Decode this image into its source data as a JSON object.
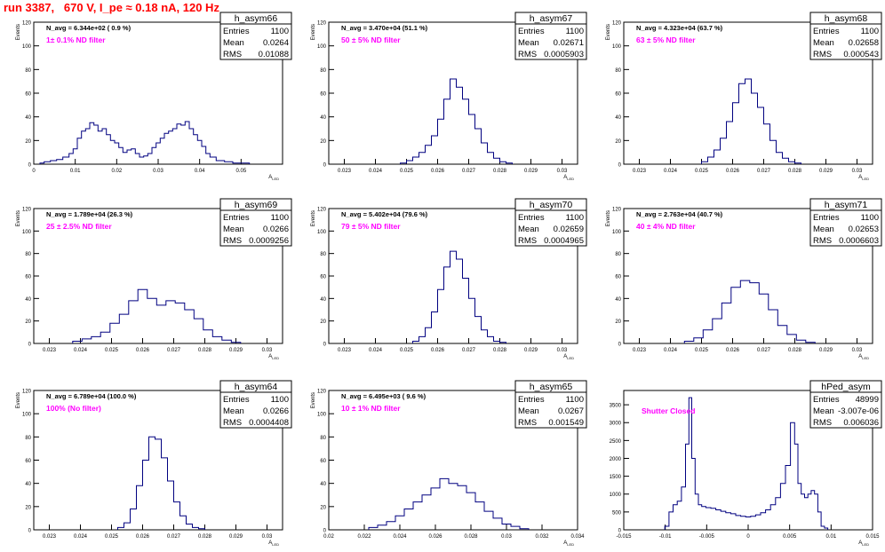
{
  "title": "run 3387,   670 V, I_pe ≈ 0.18 nA, 120 Hz",
  "colors": {
    "title": "#ff0000",
    "line": "#000080",
    "annotation": "#ff00ff",
    "text": "#000000"
  },
  "chart_data": [
    {
      "type": "histogram",
      "name": "h_asym66",
      "navg": "N_avg = 6.344e+02 ( 0.9 %)",
      "filter": "1± 0.1% ND filter",
      "stats": {
        "entries": "1100",
        "mean": "0.0264",
        "rms": "0.01088"
      },
      "xlim": [
        0,
        0.06
      ],
      "ylim": [
        0,
        120
      ],
      "xticks": [
        "0",
        "0.01",
        "0.02",
        "0.03",
        "0.04",
        "0.05"
      ],
      "xtickvals": [
        0,
        0.01,
        0.02,
        0.03,
        0.04,
        0.05
      ],
      "yticks": [
        "0",
        "20",
        "40",
        "60",
        "80",
        "100",
        "120"
      ],
      "xlabel": "A_LED",
      "ylabel": "Events",
      "x": [
        0.002,
        0.003,
        0.005,
        0.006,
        0.008,
        0.009,
        0.01,
        0.011,
        0.012,
        0.013,
        0.014,
        0.015,
        0.016,
        0.017,
        0.018,
        0.019,
        0.02,
        0.021,
        0.022,
        0.023,
        0.024,
        0.025,
        0.026,
        0.027,
        0.028,
        0.029,
        0.03,
        0.031,
        0.032,
        0.033,
        0.034,
        0.035,
        0.036,
        0.037,
        0.038,
        0.039,
        0.04,
        0.041,
        0.042,
        0.043,
        0.045,
        0.047,
        0.049,
        0.051
      ],
      "values": [
        1,
        2,
        3,
        4,
        6,
        9,
        13,
        22,
        28,
        30,
        35,
        33,
        28,
        30,
        25,
        20,
        18,
        14,
        10,
        12,
        13,
        9,
        6,
        7,
        9,
        14,
        18,
        22,
        26,
        28,
        30,
        34,
        33,
        36,
        30,
        25,
        20,
        15,
        9,
        6,
        3,
        2,
        1,
        1
      ]
    },
    {
      "type": "histogram",
      "name": "h_asym67",
      "navg": "N_avg = 3.470e+04 (51.1 %)",
      "filter": "50 ± 5% ND filter",
      "stats": {
        "entries": "1100",
        "mean": "0.02671",
        "rms": "0.0005903"
      },
      "xlim": [
        0.0225,
        0.0305
      ],
      "ylim": [
        0,
        120
      ],
      "xticks": [
        "0.023",
        "0.024",
        "0.025",
        "0.026",
        "0.027",
        "0.028",
        "0.029",
        "0.03"
      ],
      "xtickvals": [
        0.023,
        0.024,
        0.025,
        0.026,
        0.027,
        0.028,
        0.029,
        0.03
      ],
      "yticks": [
        "0",
        "20",
        "40",
        "60",
        "80",
        "100",
        "120"
      ],
      "xlabel": "A_LED",
      "ylabel": "Events",
      "x": [
        0.0249,
        0.0251,
        0.0253,
        0.0255,
        0.0257,
        0.0259,
        0.0261,
        0.0263,
        0.0265,
        0.0267,
        0.0269,
        0.0271,
        0.0273,
        0.0275,
        0.0277,
        0.0279,
        0.0281,
        0.0283
      ],
      "values": [
        1,
        3,
        6,
        10,
        16,
        24,
        38,
        55,
        72,
        65,
        55,
        42,
        30,
        18,
        10,
        5,
        2,
        1
      ]
    },
    {
      "type": "histogram",
      "name": "h_asym68",
      "navg": "N_avg = 4.323e+04 (63.7 %)",
      "filter": "63 ± 5% ND filter",
      "stats": {
        "entries": "1100",
        "mean": "0.02658",
        "rms": "0.000543"
      },
      "xlim": [
        0.0225,
        0.0305
      ],
      "ylim": [
        0,
        120
      ],
      "xticks": [
        "0.023",
        "0.024",
        "0.025",
        "0.026",
        "0.027",
        "0.028",
        "0.029",
        "0.03"
      ],
      "xtickvals": [
        0.023,
        0.024,
        0.025,
        0.026,
        0.027,
        0.028,
        0.029,
        0.03
      ],
      "yticks": [
        "0",
        "20",
        "40",
        "60",
        "80",
        "100",
        "120"
      ],
      "xlabel": "A_LED",
      "ylabel": "Events",
      "x": [
        0.0251,
        0.0253,
        0.0255,
        0.0257,
        0.0259,
        0.0261,
        0.0263,
        0.0265,
        0.0267,
        0.0269,
        0.0271,
        0.0273,
        0.0275,
        0.0277,
        0.0279,
        0.0281
      ],
      "values": [
        2,
        6,
        12,
        22,
        36,
        52,
        68,
        72,
        60,
        48,
        34,
        20,
        10,
        5,
        2,
        1
      ]
    },
    {
      "type": "histogram",
      "name": "h_asym69",
      "navg": "N_avg = 1.789e+04 (26.3 %)",
      "filter": "25 ± 2.5% ND filter",
      "stats": {
        "entries": "1100",
        "mean": "0.0266",
        "rms": "0.0009256"
      },
      "xlim": [
        0.0225,
        0.0305
      ],
      "ylim": [
        0,
        120
      ],
      "xticks": [
        "0.023",
        "0.024",
        "0.025",
        "0.026",
        "0.027",
        "0.028",
        "0.029",
        "0.03"
      ],
      "xtickvals": [
        0.023,
        0.024,
        0.025,
        0.026,
        0.027,
        0.028,
        0.029,
        0.03
      ],
      "yticks": [
        "0",
        "20",
        "40",
        "60",
        "80",
        "100",
        "120"
      ],
      "xlabel": "A_LED",
      "ylabel": "Events",
      "x": [
        0.0239,
        0.0242,
        0.0245,
        0.0248,
        0.0251,
        0.0254,
        0.0257,
        0.026,
        0.0263,
        0.0266,
        0.0269,
        0.0272,
        0.0275,
        0.0278,
        0.0281,
        0.0284,
        0.0287,
        0.029
      ],
      "values": [
        2,
        4,
        6,
        10,
        18,
        26,
        38,
        48,
        40,
        34,
        38,
        36,
        30,
        22,
        12,
        6,
        3,
        1
      ]
    },
    {
      "type": "histogram",
      "name": "h_asym70",
      "navg": "N_avg = 5.402e+04 (79.6 %)",
      "filter": "79 ± 5% ND filter",
      "stats": {
        "entries": "1100",
        "mean": "0.02659",
        "rms": "0.0004965"
      },
      "xlim": [
        0.0225,
        0.0305
      ],
      "ylim": [
        0,
        120
      ],
      "xticks": [
        "0.023",
        "0.024",
        "0.025",
        "0.026",
        "0.027",
        "0.028",
        "0.029",
        "0.03"
      ],
      "xtickvals": [
        0.023,
        0.024,
        0.025,
        0.026,
        0.027,
        0.028,
        0.029,
        0.03
      ],
      "yticks": [
        "0",
        "20",
        "40",
        "60",
        "80",
        "100",
        "120"
      ],
      "xlabel": "A_LED",
      "ylabel": "Events",
      "x": [
        0.0253,
        0.0255,
        0.0257,
        0.0259,
        0.0261,
        0.0263,
        0.0265,
        0.0267,
        0.0269,
        0.0271,
        0.0273,
        0.0275,
        0.0277,
        0.0279,
        0.0281
      ],
      "values": [
        2,
        6,
        14,
        28,
        48,
        68,
        82,
        75,
        58,
        40,
        24,
        12,
        6,
        2,
        1
      ]
    },
    {
      "type": "histogram",
      "name": "h_asym71",
      "navg": "N_avg = 2.763e+04 (40.7 %)",
      "filter": "40 ± 4% ND filter",
      "stats": {
        "entries": "1100",
        "mean": "0.02653",
        "rms": "0.0006603"
      },
      "xlim": [
        0.0225,
        0.0305
      ],
      "ylim": [
        0,
        120
      ],
      "xticks": [
        "0.023",
        "0.024",
        "0.025",
        "0.026",
        "0.027",
        "0.028",
        "0.029",
        "0.03"
      ],
      "xtickvals": [
        0.023,
        0.024,
        0.025,
        0.026,
        0.027,
        0.028,
        0.029,
        0.03
      ],
      "yticks": [
        "0",
        "20",
        "40",
        "60",
        "80",
        "100",
        "120"
      ],
      "xlabel": "A_LED",
      "ylabel": "Events",
      "x": [
        0.0246,
        0.0249,
        0.0252,
        0.0255,
        0.0258,
        0.0261,
        0.0264,
        0.0267,
        0.027,
        0.0273,
        0.0276,
        0.0279,
        0.0282,
        0.0285
      ],
      "values": [
        2,
        5,
        12,
        22,
        36,
        50,
        56,
        54,
        44,
        30,
        16,
        8,
        3,
        1
      ]
    },
    {
      "type": "histogram",
      "name": "h_asym64",
      "navg": "N_avg = 6.789e+04 (100.0 %)",
      "filter": "100% (No filter)",
      "stats": {
        "entries": "1100",
        "mean": "0.0266",
        "rms": "0.0004408"
      },
      "xlim": [
        0.0225,
        0.0305
      ],
      "ylim": [
        0,
        120
      ],
      "xticks": [
        "0.023",
        "0.024",
        "0.025",
        "0.026",
        "0.027",
        "0.028",
        "0.029",
        "0.03"
      ],
      "xtickvals": [
        0.023,
        0.024,
        0.025,
        0.026,
        0.027,
        0.028,
        0.029,
        0.03
      ],
      "yticks": [
        "0",
        "20",
        "40",
        "60",
        "80",
        "100",
        "120"
      ],
      "xlabel": "A_LED",
      "ylabel": "Events",
      "x": [
        0.0253,
        0.0255,
        0.0257,
        0.0259,
        0.0261,
        0.0263,
        0.0265,
        0.0267,
        0.0269,
        0.0271,
        0.0273,
        0.0275,
        0.0277,
        0.0279
      ],
      "values": [
        2,
        6,
        18,
        38,
        60,
        80,
        78,
        62,
        42,
        24,
        12,
        5,
        2,
        1
      ]
    },
    {
      "type": "histogram",
      "name": "h_asym65",
      "navg": "N_avg = 6.495e+03 ( 9.6 %)",
      "filter": "10 ± 1% ND filter",
      "stats": {
        "entries": "1100",
        "mean": "0.0267",
        "rms": "0.001549"
      },
      "xlim": [
        0.02,
        0.034
      ],
      "ylim": [
        0,
        120
      ],
      "xticks": [
        "0.02",
        "0.022",
        "0.024",
        "0.026",
        "0.028",
        "0.03",
        "0.032",
        "0.034"
      ],
      "xtickvals": [
        0.02,
        0.022,
        0.024,
        0.026,
        0.028,
        0.03,
        0.032,
        0.034
      ],
      "yticks": [
        "0",
        "20",
        "40",
        "60",
        "80",
        "100",
        "120"
      ],
      "xlabel": "A_LED",
      "ylabel": "Events",
      "x": [
        0.0225,
        0.023,
        0.0235,
        0.024,
        0.0245,
        0.025,
        0.0255,
        0.026,
        0.0265,
        0.027,
        0.0275,
        0.028,
        0.0285,
        0.029,
        0.0295,
        0.03,
        0.0305,
        0.031
      ],
      "values": [
        2,
        4,
        7,
        12,
        18,
        24,
        30,
        36,
        44,
        40,
        38,
        32,
        24,
        16,
        10,
        5,
        3,
        1
      ]
    },
    {
      "type": "histogram",
      "name": "hPed_asym",
      "navg": "",
      "filter": "Shutter Closed",
      "stats": {
        "entries": "48999",
        "mean": "-3.007e-06",
        "rms": "0.006036"
      },
      "xlim": [
        -0.015,
        0.015
      ],
      "ylim": [
        0,
        3900
      ],
      "xticks": [
        "-0.015",
        "-0.01",
        "-0.005",
        "0",
        "0.005",
        "0.01",
        "0.015"
      ],
      "xtickvals": [
        -0.015,
        -0.01,
        -0.005,
        0,
        0.005,
        0.01,
        0.015
      ],
      "yticks": [
        "0",
        "500",
        "1000",
        "1500",
        "2000",
        "2500",
        "3000",
        "3500"
      ],
      "ytickvals": [
        0,
        500,
        1000,
        1500,
        2000,
        2500,
        3000,
        3500
      ],
      "xlabel": "A_LED",
      "ylabel": "",
      "x": [
        -0.0098,
        -0.0093,
        -0.0088,
        -0.0083,
        -0.0078,
        -0.0073,
        -0.007,
        -0.0066,
        -0.0062,
        -0.0058,
        -0.0054,
        -0.0048,
        -0.0042,
        -0.0036,
        -0.003,
        -0.0024,
        -0.0018,
        -0.0012,
        -0.0006,
        0.0,
        0.0006,
        0.0012,
        0.0018,
        0.0024,
        0.003,
        0.0036,
        0.0042,
        0.0048,
        0.0054,
        0.0058,
        0.0062,
        0.0066,
        0.007,
        0.0074,
        0.0078,
        0.0082,
        0.0086,
        0.009,
        0.0094
      ],
      "values": [
        100,
        500,
        700,
        800,
        1200,
        2400,
        3700,
        2000,
        1000,
        700,
        650,
        620,
        600,
        560,
        520,
        480,
        450,
        400,
        380,
        360,
        380,
        420,
        480,
        560,
        700,
        900,
        1300,
        1800,
        3000,
        2400,
        1300,
        1000,
        900,
        1000,
        1100,
        1000,
        500,
        100,
        50
      ]
    }
  ]
}
